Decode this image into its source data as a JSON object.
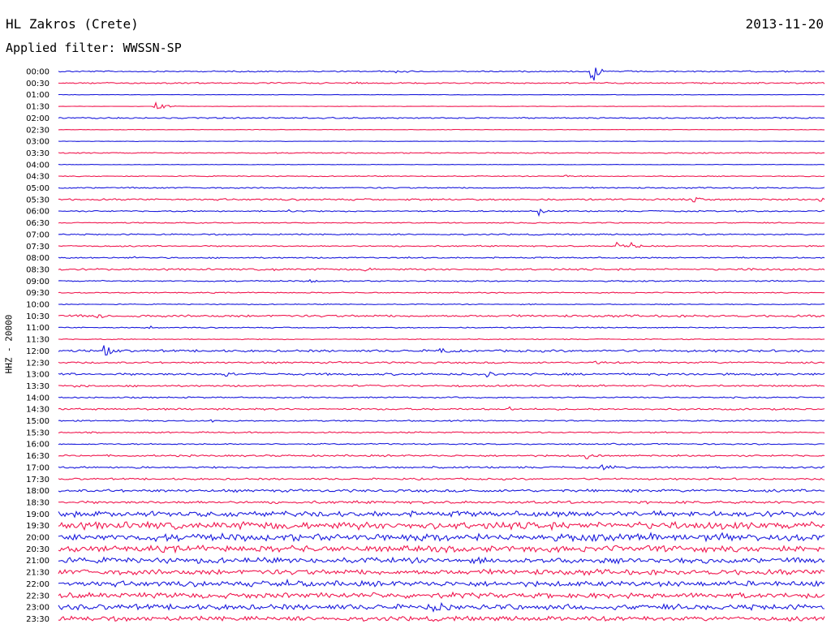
{
  "header": {
    "station": "HL Zakros (Crete)",
    "date": "2013-11-20",
    "filter": "Applied filter: WWSSN-SP",
    "channel": "HHZ - 20000"
  },
  "colors": {
    "a": "#1a1adc",
    "b": "#f0174f"
  },
  "chart_data": {
    "type": "line",
    "title": "HL Zakros (Crete)",
    "subtitle": "Applied filter: WWSSN-SP",
    "ylabel": "HHZ - 20000",
    "xlabel": "",
    "rows": [
      {
        "label": "00:00",
        "color": "a",
        "noise": 0.15,
        "events": [
          [
            0.44,
            4,
            0.4
          ],
          [
            0.695,
            5,
            0.9
          ],
          [
            0.697,
            3,
            2.6
          ]
        ]
      },
      {
        "label": "00:30",
        "color": "b",
        "noise": 0.15,
        "events": [
          [
            0.39,
            3,
            0.2
          ]
        ]
      },
      {
        "label": "01:00",
        "color": "a",
        "noise": 0.05,
        "events": []
      },
      {
        "label": "01:30",
        "color": "b",
        "noise": 0.05,
        "events": [
          [
            0.127,
            5,
            1.5
          ]
        ]
      },
      {
        "label": "02:00",
        "color": "a",
        "noise": 0.15,
        "events": []
      },
      {
        "label": "02:30",
        "color": "b",
        "noise": 0.05,
        "events": []
      },
      {
        "label": "03:00",
        "color": "a",
        "noise": 0.05,
        "events": []
      },
      {
        "label": "03:30",
        "color": "b",
        "noise": 0.12,
        "events": []
      },
      {
        "label": "04:00",
        "color": "a",
        "noise": 0.05,
        "events": []
      },
      {
        "label": "04:30",
        "color": "b",
        "noise": 0.1,
        "events": [
          [
            0.66,
            3,
            0.35
          ]
        ]
      },
      {
        "label": "05:00",
        "color": "a",
        "noise": 0.15,
        "events": []
      },
      {
        "label": "05:30",
        "color": "b",
        "noise": 0.2,
        "events": [
          [
            0.83,
            3,
            0.6
          ],
          [
            0.995,
            3,
            0.6
          ]
        ]
      },
      {
        "label": "06:00",
        "color": "a",
        "noise": 0.15,
        "events": [
          [
            0.3,
            3,
            0.3
          ],
          [
            0.628,
            3,
            0.8
          ]
        ]
      },
      {
        "label": "06:30",
        "color": "b",
        "noise": 0.12,
        "events": []
      },
      {
        "label": "07:00",
        "color": "a",
        "noise": 0.15,
        "events": []
      },
      {
        "label": "07:30",
        "color": "b",
        "noise": 0.15,
        "events": [
          [
            0.73,
            4,
            0.9
          ],
          [
            0.75,
            4,
            0.6
          ]
        ]
      },
      {
        "label": "08:00",
        "color": "a",
        "noise": 0.15,
        "events": [
          [
            0.1,
            3,
            0.3
          ],
          [
            0.45,
            4,
            0.3
          ]
        ]
      },
      {
        "label": "08:30",
        "color": "b",
        "noise": 0.2,
        "events": [
          [
            0.28,
            3,
            0.45
          ],
          [
            0.4,
            3,
            0.4
          ],
          [
            0.9,
            3,
            0.5
          ]
        ]
      },
      {
        "label": "09:00",
        "color": "a",
        "noise": 0.15,
        "events": [
          [
            0.33,
            3,
            0.3
          ]
        ]
      },
      {
        "label": "09:30",
        "color": "b",
        "noise": 0.12,
        "events": []
      },
      {
        "label": "10:00",
        "color": "a",
        "noise": 0.1,
        "events": []
      },
      {
        "label": "10:30",
        "color": "b",
        "noise": 0.25,
        "events": [
          [
            0.05,
            4,
            0.7
          ],
          [
            0.1,
            4,
            0.5
          ]
        ]
      },
      {
        "label": "11:00",
        "color": "a",
        "noise": 0.12,
        "events": [
          [
            0.12,
            3,
            0.3
          ]
        ]
      },
      {
        "label": "11:30",
        "color": "b",
        "noise": 0.1,
        "events": []
      },
      {
        "label": "12:00",
        "color": "a",
        "noise": 0.25,
        "events": [
          [
            0.06,
            4,
            1.4
          ],
          [
            0.5,
            4,
            0.5
          ]
        ]
      },
      {
        "label": "12:30",
        "color": "b",
        "noise": 0.2,
        "events": [
          [
            0.7,
            4,
            0.6
          ]
        ]
      },
      {
        "label": "13:00",
        "color": "a",
        "noise": 0.25,
        "events": [
          [
            0.22,
            4,
            0.6
          ],
          [
            0.56,
            3,
            0.6
          ]
        ]
      },
      {
        "label": "13:30",
        "color": "b",
        "noise": 0.2,
        "events": [
          [
            0.02,
            3,
            0.4
          ]
        ]
      },
      {
        "label": "14:00",
        "color": "a",
        "noise": 0.15,
        "events": []
      },
      {
        "label": "14:30",
        "color": "b",
        "noise": 0.2,
        "events": [
          [
            0.59,
            3,
            0.5
          ]
        ]
      },
      {
        "label": "15:00",
        "color": "a",
        "noise": 0.15,
        "events": [
          [
            0.2,
            3,
            0.3
          ]
        ]
      },
      {
        "label": "15:30",
        "color": "b",
        "noise": 0.15,
        "events": []
      },
      {
        "label": "16:00",
        "color": "a",
        "noise": 0.15,
        "events": []
      },
      {
        "label": "16:30",
        "color": "b",
        "noise": 0.2,
        "events": [
          [
            0.69,
            4,
            1.0
          ]
        ]
      },
      {
        "label": "17:00",
        "color": "a",
        "noise": 0.2,
        "events": [
          [
            0.1,
            3,
            0.5
          ],
          [
            0.71,
            6,
            0.8
          ]
        ]
      },
      {
        "label": "17:30",
        "color": "b",
        "noise": 0.2,
        "events": []
      },
      {
        "label": "18:00",
        "color": "a",
        "noise": 0.3,
        "events": [
          [
            0.75,
            3,
            0.4
          ]
        ]
      },
      {
        "label": "18:30",
        "color": "b",
        "noise": 0.3,
        "events": []
      },
      {
        "label": "19:00",
        "color": "a",
        "noise": 0.6,
        "events": []
      },
      {
        "label": "19:30",
        "color": "b",
        "noise": 0.8,
        "events": []
      },
      {
        "label": "20:00",
        "color": "a",
        "noise": 0.8,
        "events": []
      },
      {
        "label": "20:30",
        "color": "b",
        "noise": 0.7,
        "events": []
      },
      {
        "label": "21:00",
        "color": "a",
        "noise": 0.6,
        "events": []
      },
      {
        "label": "21:30",
        "color": "b",
        "noise": 0.6,
        "events": []
      },
      {
        "label": "22:00",
        "color": "a",
        "noise": 0.6,
        "events": [
          [
            0.3,
            6,
            0.7
          ]
        ]
      },
      {
        "label": "22:30",
        "color": "b",
        "noise": 0.6,
        "events": []
      },
      {
        "label": "23:00",
        "color": "a",
        "noise": 0.6,
        "events": [
          [
            0.49,
            4,
            0.9
          ]
        ]
      },
      {
        "label": "23:30",
        "color": "b",
        "noise": 0.5,
        "events": []
      }
    ]
  }
}
